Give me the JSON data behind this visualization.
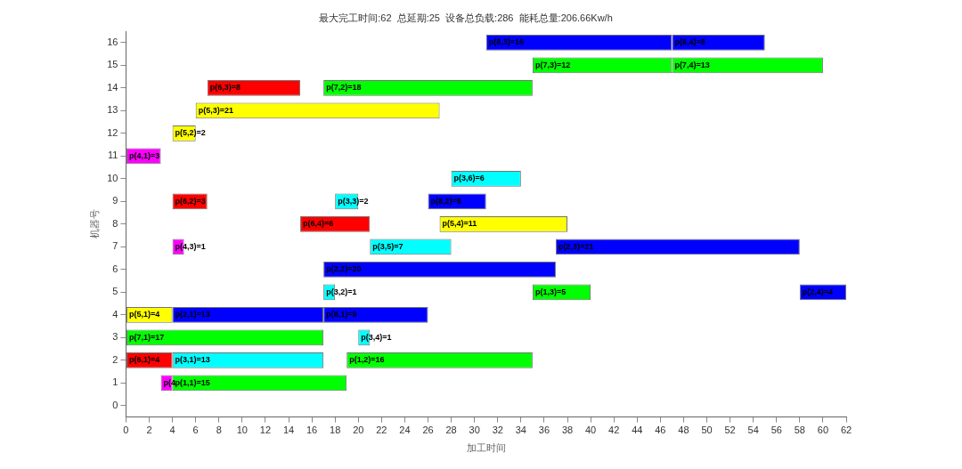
{
  "chart_data": {
    "type": "bar",
    "orientation": "horizontal",
    "title": "最大完工时间:62  总延期:25  设备总负载:286  能耗总量:206.66Kw/h",
    "xlabel": "加工时间",
    "ylabel": "机器号",
    "categories": [
      "16",
      "15",
      "14",
      "13",
      "12",
      "11",
      "10",
      "9",
      "8",
      "7",
      "6",
      "5",
      "4",
      "3",
      "2",
      "1",
      "0"
    ],
    "xlim": [
      0,
      62
    ],
    "xticks": [
      0,
      2,
      4,
      6,
      8,
      10,
      12,
      14,
      16,
      18,
      20,
      22,
      24,
      26,
      28,
      30,
      32,
      34,
      36,
      38,
      40,
      42,
      44,
      46,
      48,
      50,
      52,
      54,
      56,
      58,
      60,
      62
    ],
    "grid": false,
    "legend": false,
    "series": [
      {
        "values": [
          16,
          12,
          8,
          21,
          2,
          3,
          6,
          3,
          6,
          1,
          20,
          1,
          4,
          17,
          4,
          1,
          null
        ],
        "base": [
          31,
          35,
          7,
          6,
          4,
          0,
          28,
          4,
          15,
          4,
          17,
          17,
          0,
          0,
          0,
          3,
          null
        ],
        "colors": [
          "#0000ff",
          "#00ff00",
          "#ff0000",
          "#ffff00",
          "#ffff00",
          "#ff00ff",
          "#00ffff",
          "#ff0000",
          "#ff0000",
          "#ff00ff",
          "#0000ff",
          "#00ffff",
          "#ffff00",
          "#00ff00",
          "#ff0000",
          "#ff00ff",
          "#000000"
        ],
        "value_labels": [
          "p(8,3)=16",
          "p(7,3)=12",
          "p(6,3)=8",
          "p(5,3)=21",
          "p(5,2)=2",
          "p(4,1)=3",
          "p(3,6)=6",
          "p(6,2)=3",
          "p(6,4)=6",
          "p(4,3)=1",
          "p(2,2)=20",
          "p(3,2)=1",
          "p(5,1)=4",
          "p(7,1)=17",
          "p(6,1)=4",
          "p(4",
          null
        ]
      },
      {
        "values": [
          8,
          13,
          18,
          null,
          null,
          null,
          null,
          2,
          11,
          7,
          null,
          5,
          13,
          1,
          13,
          15,
          null
        ],
        "base": [
          47,
          47,
          17,
          null,
          null,
          null,
          null,
          18,
          27,
          21,
          null,
          35,
          4,
          20,
          4,
          4,
          null
        ],
        "colors": [
          "#0000ff",
          "#00ff00",
          "#00ff00",
          "#000000",
          "#000000",
          "#000000",
          "#000000",
          "#00ffff",
          "#ffff00",
          "#00ffff",
          "#000000",
          "#00ff00",
          "#0000ff",
          "#00ffff",
          "#00ffff",
          "#00ff00",
          "#000000"
        ],
        "value_labels": [
          "p(8,4)=8",
          "p(7,4)=13",
          "p(7,2)=18",
          null,
          null,
          null,
          null,
          "p(3,3)=2",
          "p(5,4)=11",
          "p(3,5)=7",
          null,
          "p(1,3)=5",
          "p(2,1)=13",
          "p(3,4)=1",
          "p(3,1)=13",
          "p(1,1)=15",
          null
        ]
      },
      {
        "values": [
          null,
          null,
          null,
          null,
          null,
          null,
          null,
          5,
          null,
          21,
          null,
          4,
          9,
          null,
          16,
          null,
          null
        ],
        "base": [
          null,
          null,
          null,
          null,
          null,
          null,
          null,
          26,
          null,
          37,
          null,
          58,
          17,
          null,
          19,
          null,
          null
        ],
        "colors": [
          "#000000",
          "#000000",
          "#000000",
          "#000000",
          "#000000",
          "#000000",
          "#000000",
          "#0000ff",
          "#000000",
          "#0000ff",
          "#000000",
          "#0000ff",
          "#0000ff",
          "#000000",
          "#00ff00",
          "#000000",
          "#000000"
        ],
        "value_labels": [
          null,
          null,
          null,
          null,
          null,
          null,
          null,
          "p(8,2)=5",
          null,
          "p(2,3)=21",
          null,
          "p(2,4)=4",
          "p(8,1)=9",
          null,
          "p(1,2)=16",
          null,
          null
        ]
      }
    ]
  }
}
